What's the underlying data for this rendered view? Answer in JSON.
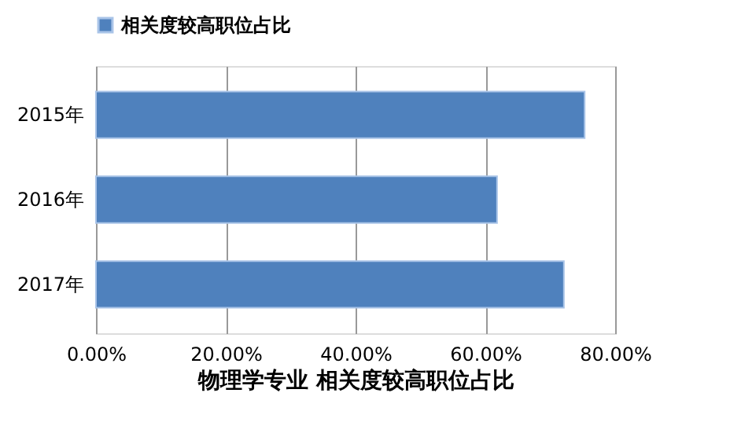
{
  "chart_data": {
    "type": "bar",
    "orientation": "horizontal",
    "categories": [
      "2015年",
      "2016年",
      "2017年"
    ],
    "series": [
      {
        "name": "相关度较高职位占比",
        "color": "#4f81bd",
        "values": [
          75.3,
          61.8,
          72.1
        ]
      }
    ],
    "xlabel": "物理学专业  相关度较高职位占比",
    "xlim": [
      0,
      80
    ],
    "xticks": [
      {
        "value": 0,
        "label": "0.00%"
      },
      {
        "value": 20,
        "label": "20.00%"
      },
      {
        "value": 40,
        "label": "40.00%"
      },
      {
        "value": 60,
        "label": "60.00%"
      },
      {
        "value": 80,
        "label": "80.00%"
      }
    ],
    "grid": "x",
    "legend": "top left"
  }
}
